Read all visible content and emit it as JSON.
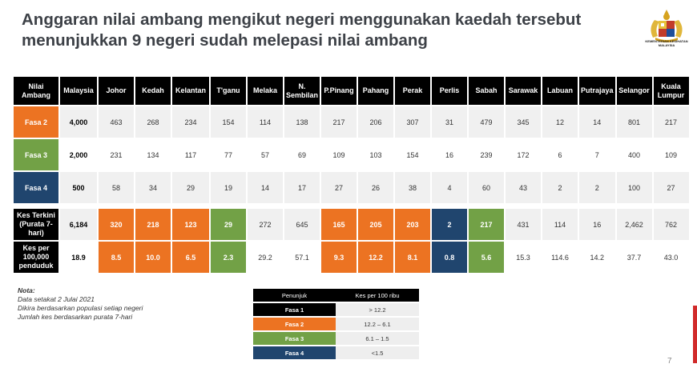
{
  "title_line1": "Anggaran nilai ambang mengikut negeri menggunakan kaedah tersebut",
  "title_line2": "menunjukkan 9 negeri sudah melepasi nilai ambang",
  "logo_caption": "KEMENTERIAN KESIHATAN MALAYSIA",
  "headers": [
    "Nilai Ambang",
    "Malaysia",
    "Johor",
    "Kedah",
    "Kelantan",
    "T'ganu",
    "Melaka",
    "N. Sembilan",
    "P.Pinang",
    "Pahang",
    "Perak",
    "Perlis",
    "Sabah",
    "Sarawak",
    "Labuan",
    "Putrajaya",
    "Selangor",
    "Kuala Lumpur"
  ],
  "phase_rows": [
    {
      "label": "Fasa 2",
      "values": [
        "4,000",
        "463",
        "268",
        "234",
        "154",
        "114",
        "138",
        "217",
        "206",
        "307",
        "31",
        "479",
        "345",
        "12",
        "14",
        "801",
        "217"
      ]
    },
    {
      "label": "Fasa 3",
      "values": [
        "2,000",
        "231",
        "134",
        "117",
        "77",
        "57",
        "69",
        "109",
        "103",
        "154",
        "16",
        "239",
        "172",
        "6",
        "7",
        "400",
        "109"
      ]
    },
    {
      "label": "Fasa 4",
      "values": [
        "500",
        "58",
        "34",
        "29",
        "19",
        "14",
        "17",
        "27",
        "26",
        "38",
        "4",
        "60",
        "43",
        "2",
        "2",
        "100",
        "27"
      ]
    }
  ],
  "kes_terkini": {
    "label": "Kes Terkini (Purata 7-hari)",
    "values": [
      "6,184",
      "320",
      "218",
      "123",
      "29",
      "272",
      "645",
      "165",
      "205",
      "203",
      "2",
      "217",
      "431",
      "114",
      "16",
      "2,462",
      "762"
    ]
  },
  "kes_per": {
    "label": "Kes per 100,000 penduduk",
    "values": [
      "18.9",
      "8.5",
      "10.0",
      "6.5",
      "2.3",
      "29.2",
      "57.1",
      "9.3",
      "12.2",
      "8.1",
      "0.8",
      "5.6",
      "15.3",
      "114.6",
      "14.2",
      "37.7",
      "43.0"
    ]
  },
  "highlight_by_state": [
    "",
    "f2",
    "f2",
    "f2",
    "f3",
    "",
    "",
    "f2",
    "f2",
    "f2",
    "f4",
    "f3",
    "",
    "",
    "",
    "",
    ""
  ],
  "colors": {
    "fasa2": "#ec7322",
    "fasa3": "#72a146",
    "fasa4": "#20456e",
    "header": "#000000"
  },
  "note": {
    "heading": "Nota:",
    "lines": [
      "Data setakat 2 Julai 2021",
      "Dikira berdasarkan populasi setiap negeri",
      "Jumlah kes berdasarkan purata 7-hari"
    ]
  },
  "legend": {
    "header_left": "Penunjuk",
    "header_right": "Kes per 100 ribu",
    "rows": [
      {
        "label": "Fasa 1",
        "value": "> 12.2"
      },
      {
        "label": "Fasa 2",
        "value": "12.2 – 6.1"
      },
      {
        "label": "Fasa 3",
        "value": "6.1 – 1.5"
      },
      {
        "label": "Fasa 4",
        "value": "<1.5"
      }
    ]
  },
  "page_number": "7"
}
